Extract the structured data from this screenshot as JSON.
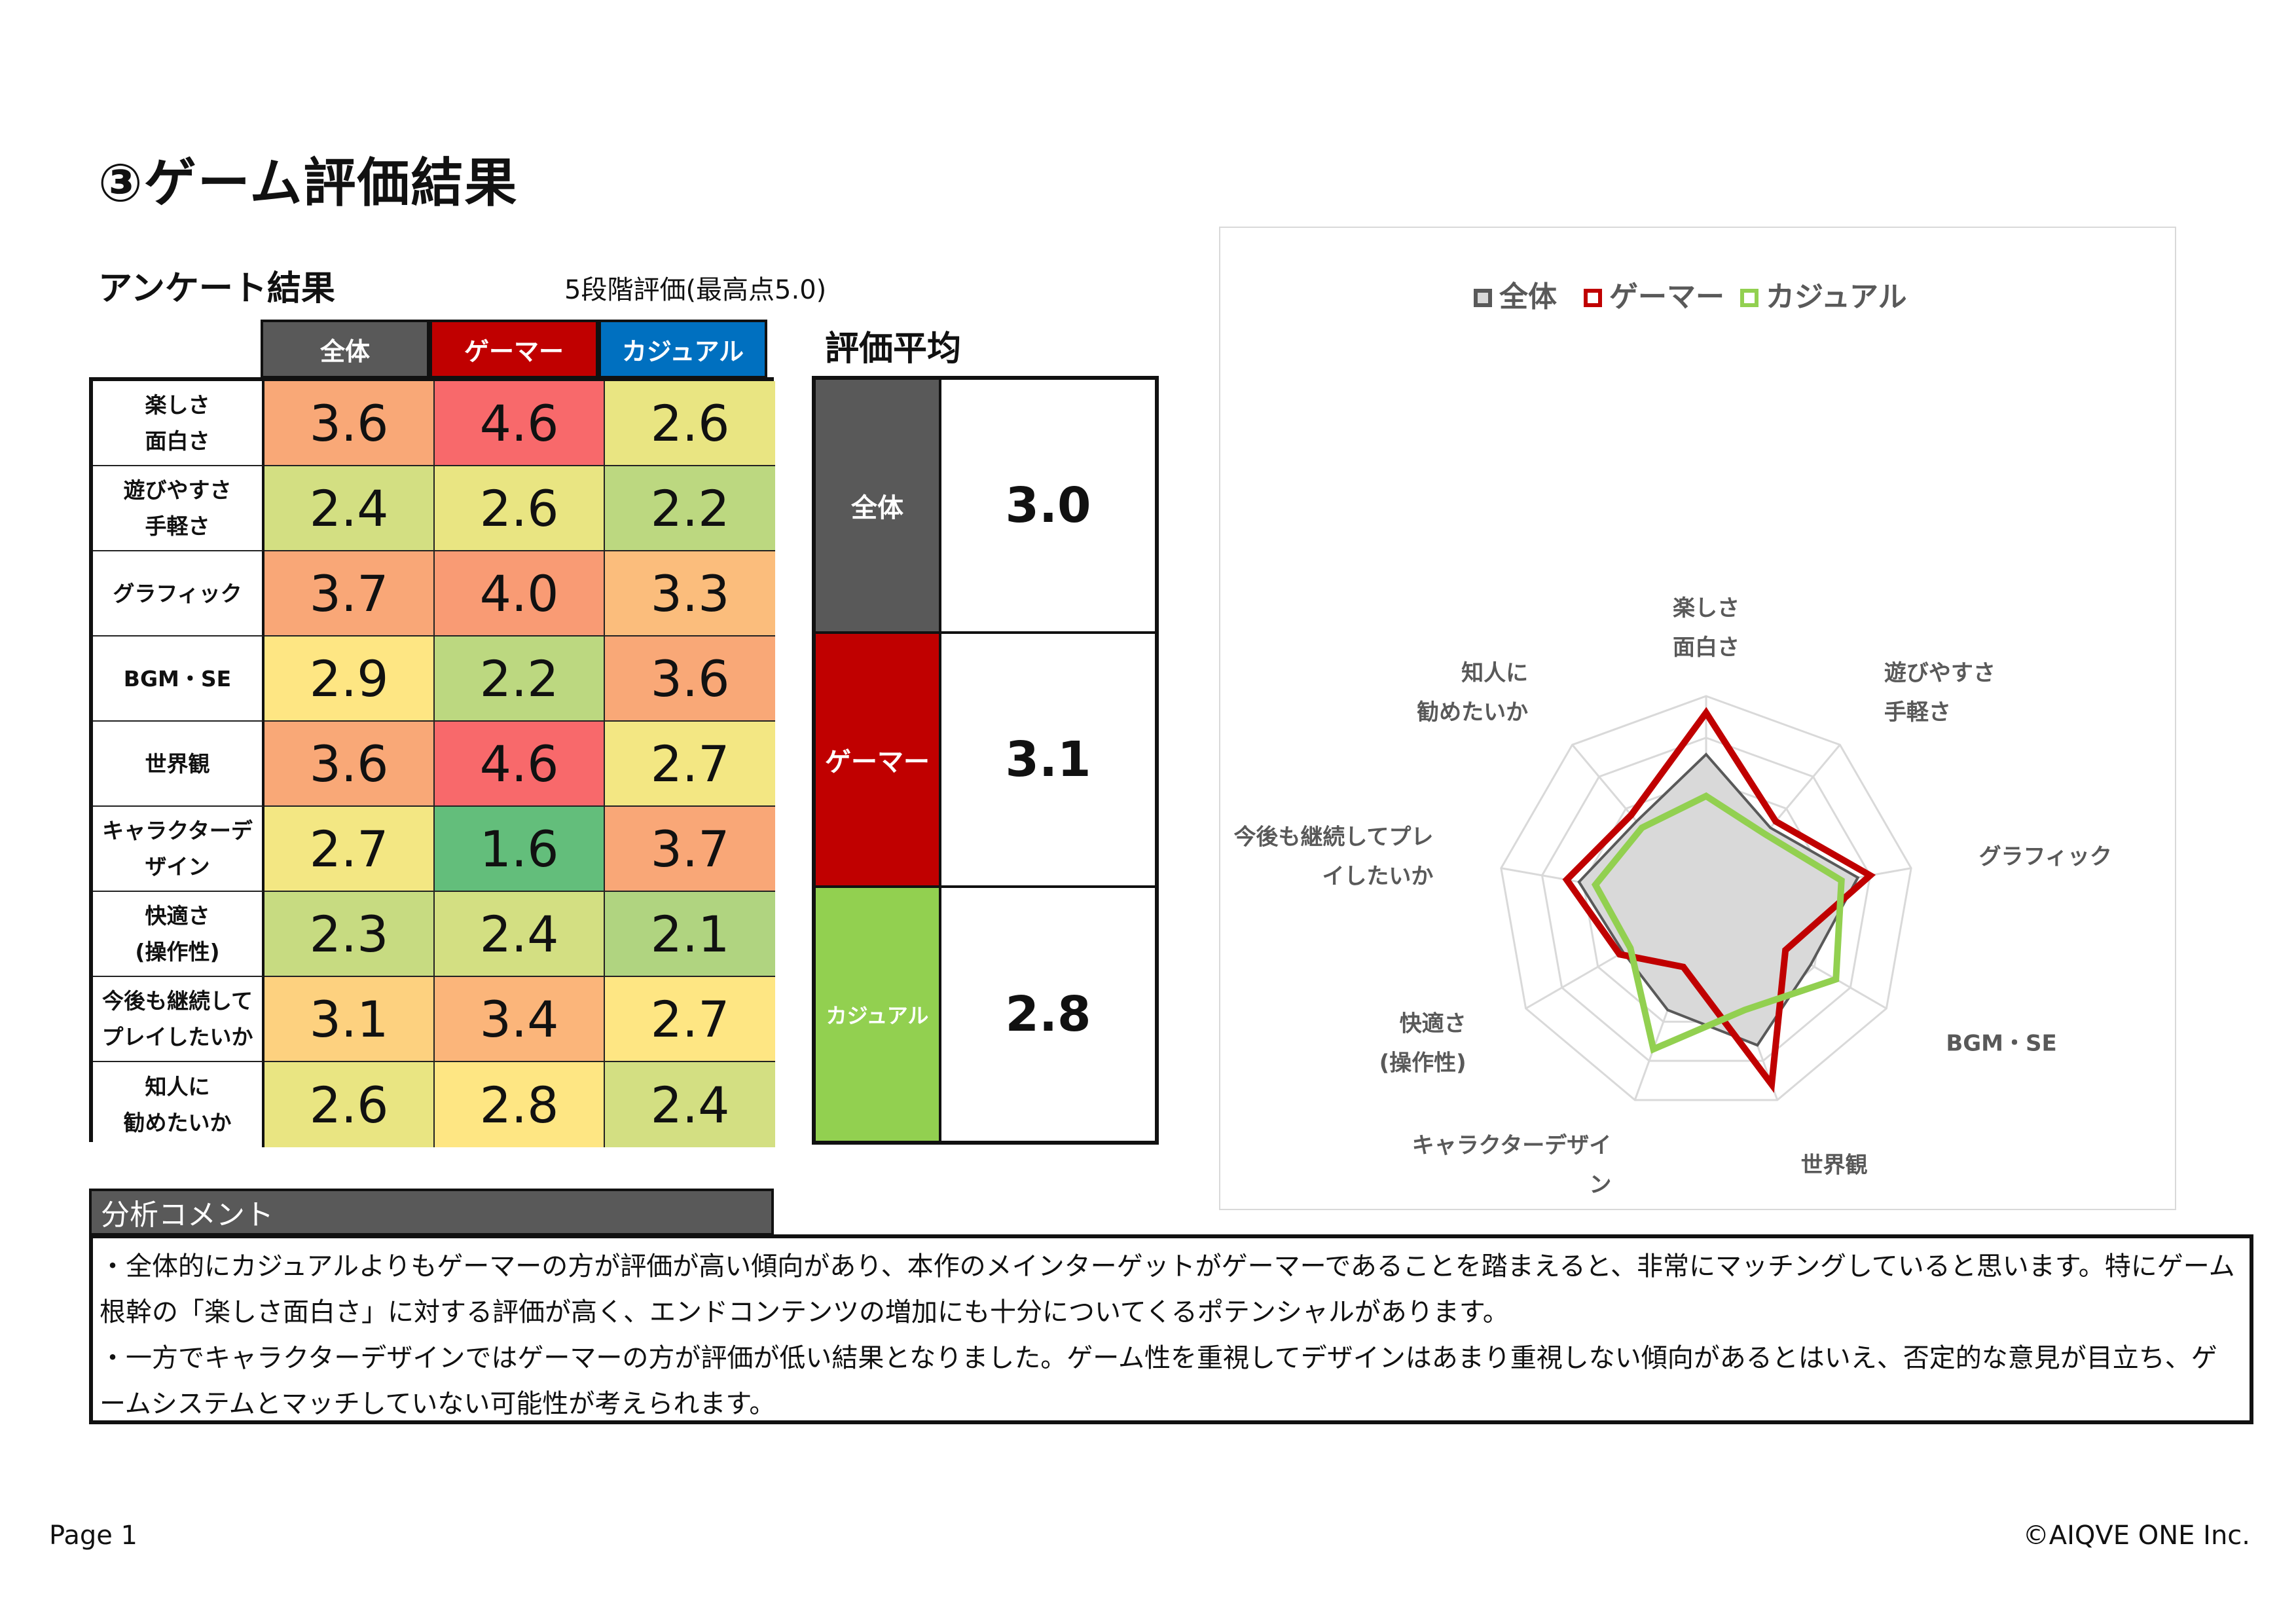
{
  "title": "③ゲーム評価結果",
  "survey": {
    "heading": "アンケート結果",
    "scale_note": "5段階評価(最高点5.0)",
    "columns": [
      "全体",
      "ゲーマー",
      "カジュアル"
    ],
    "column_colors": [
      "#595959",
      "#c00000",
      "#0070c0"
    ],
    "rows": [
      {
        "label_lines": [
          "楽しさ",
          "面白さ"
        ],
        "scores": [
          "3.6",
          "4.6",
          "2.6"
        ],
        "colors": [
          "#f9a877",
          "#f8696b",
          "#e9e582"
        ]
      },
      {
        "label_lines": [
          "遊びやすさ",
          "手軽さ"
        ],
        "scores": [
          "2.4",
          "2.6",
          "2.2"
        ],
        "colors": [
          "#d3df82",
          "#e9e582",
          "#bcd880"
        ]
      },
      {
        "label_lines": [
          "グラフィック"
        ],
        "scores": [
          "3.7",
          "4.0",
          "3.3"
        ],
        "colors": [
          "#f9a777",
          "#f99b74",
          "#fbbd7c"
        ]
      },
      {
        "label_lines": [
          "BGM・SE"
        ],
        "scores": [
          "2.9",
          "2.2",
          "3.6"
        ],
        "colors": [
          "#fee683",
          "#bcd880",
          "#f9a877"
        ]
      },
      {
        "label_lines": [
          "世界観"
        ],
        "scores": [
          "3.6",
          "4.6",
          "2.7"
        ],
        "colors": [
          "#f9a877",
          "#f8696b",
          "#f3e783"
        ]
      },
      {
        "label_lines": [
          "キャラクターデ",
          "ザイン"
        ],
        "scores": [
          "2.7",
          "1.6",
          "3.7"
        ],
        "colors": [
          "#f3e783",
          "#63be7b",
          "#f9a777"
        ]
      },
      {
        "label_lines": [
          "快適さ",
          "(操作性)"
        ],
        "scores": [
          "2.3",
          "2.4",
          "2.1"
        ],
        "colors": [
          "#c7db81",
          "#d3df82",
          "#b0d480"
        ]
      },
      {
        "label_lines": [
          "今後も継続して",
          "プレイしたいか"
        ],
        "scores": [
          "3.1",
          "3.4",
          "2.7"
        ],
        "colors": [
          "#fdd17f",
          "#fbb57a",
          "#fee683"
        ]
      },
      {
        "label_lines": [
          "知人に",
          "勧めたいか"
        ],
        "scores": [
          "2.6",
          "2.8",
          "2.4"
        ],
        "colors": [
          "#e9e582",
          "#fee683",
          "#d3df82"
        ]
      }
    ]
  },
  "averages": {
    "heading": "評価平均",
    "items": [
      {
        "label": "全体",
        "value": "3.0",
        "color": "#595959"
      },
      {
        "label": "ゲーマー",
        "value": "3.1",
        "color": "#c00000"
      },
      {
        "label": "カジュアル",
        "value": "2.8",
        "color": "#92d050"
      }
    ]
  },
  "chart_data": {
    "type": "radar",
    "title": "",
    "legend_position": "top",
    "categories": [
      [
        "楽しさ",
        "面白さ"
      ],
      [
        "遊びやすさ",
        "手軽さ"
      ],
      [
        "グラフィック"
      ],
      [
        "BGM・SE"
      ],
      [
        "世界観"
      ],
      [
        "キャラクターデザイ",
        "ン"
      ],
      [
        "快適さ",
        "(操作性)"
      ],
      [
        "今後も継続してプレ",
        "イしたいか"
      ],
      [
        "知人に",
        "勧めたいか"
      ]
    ],
    "range": [
      0,
      5
    ],
    "gridlines": [
      1,
      2,
      3,
      4,
      5
    ],
    "series": [
      {
        "name": "全体",
        "values": [
          3.6,
          2.4,
          3.7,
          2.9,
          3.6,
          2.7,
          2.3,
          3.1,
          2.6
        ],
        "stroke": "#595959",
        "fill": "#d9d9d9"
      },
      {
        "name": "ゲーマー",
        "values": [
          4.6,
          2.6,
          4.0,
          2.2,
          4.6,
          1.6,
          2.4,
          3.4,
          2.8
        ],
        "stroke": "#c00000",
        "fill": "none"
      },
      {
        "name": "カジュアル",
        "values": [
          2.6,
          2.2,
          3.3,
          3.6,
          2.7,
          3.7,
          2.1,
          2.7,
          2.4
        ],
        "stroke": "#92d050",
        "fill": "none"
      }
    ]
  },
  "comment": {
    "heading": "分析コメント",
    "paragraphs": [
      "・全体的にカジュアルよりもゲーマーの方が評価が高い傾向があり、本作のメインターゲットがゲーマーであることを踏まえると、非常にマッチングしていると思います。特にゲーム根幹の「楽しさ面白さ」に対する評価が高く、エンドコンテンツの増加にも十分についてくるポテンシャルがあります。",
      "・一方でキャラクターデザインではゲーマーの方が評価が低い結果となりました。ゲーム性を重視してデザインはあまり重視しない傾向があるとはいえ、否定的な意見が目立ち、ゲームシステムとマッチしていない可能性が考えられます。"
    ]
  },
  "footer": {
    "page": "Page 1",
    "copyright": "©AIQVE ONE Inc."
  }
}
